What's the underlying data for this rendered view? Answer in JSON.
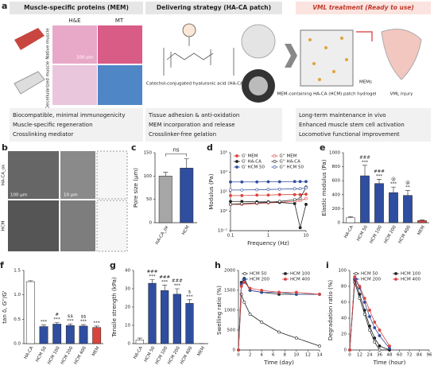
{
  "panel_a": {
    "label": "a",
    "sections": [
      {
        "title": "Muscle-specific proteins (MEM)",
        "bullets": [
          "Biocompatible, minimal immunogenicity",
          "Muscle-specific regeneration",
          "Crosslinking mediator"
        ]
      },
      {
        "title": "Delivering strategy (HA-CA patch)",
        "bullets": [
          "Tissue adhesion & anti-oxidation",
          "MEM incorporation and release",
          "Crosslinker-free gelation"
        ]
      },
      {
        "title": "VML treatment (Ready to use)",
        "bullets": [
          "Long-term maintenance in vivo",
          "Enhanced muscle stem cell activation",
          "Locomotive functional improvement"
        ]
      }
    ],
    "row_labels": [
      "Native muscle",
      "Decellularized muscle"
    ],
    "stain_labels": [
      "H&E",
      "MT"
    ],
    "scale_bar": "100 μm",
    "molecule_label": "Catechol-conjugated hyaluronic acid (HA-CA)",
    "hydrogel_label": "MEM-containing HA-CA (HCM) patch hydrogel",
    "mems_label": "MEMs",
    "injury_label": "VML injury"
  },
  "panel_b": {
    "label": "b",
    "rows": [
      "HA-CA_ox",
      "HCM"
    ],
    "scale_bars": [
      "100 μm",
      "10 μm"
    ]
  },
  "chart_data": [
    {
      "type": "bar",
      "label": "c",
      "ylabel": "Pore size (μm)",
      "categories": [
        "HA-CA_ox",
        "HCM"
      ],
      "values": [
        100,
        117
      ],
      "errors": [
        8,
        20
      ],
      "colors": [
        "#a6a6a6",
        "#2f4ea0"
      ],
      "ylim": [
        0,
        150
      ],
      "yticks": [
        0,
        50,
        100,
        150
      ],
      "annotation": "ns"
    },
    {
      "type": "line",
      "label": "d",
      "xlabel": "Frequency (Hz)",
      "ylabel": "Modulus (Pa)",
      "log_x": true,
      "log_y": true,
      "x": [
        0.1,
        0.2,
        0.5,
        1,
        2,
        5,
        7,
        10
      ],
      "xlim": [
        0.1,
        10
      ],
      "xticks": [
        0.1,
        1,
        10
      ],
      "ylim": [
        0.01,
        1000000
      ],
      "yticks": [
        {
          "value": 0.01,
          "label": "10⁻²"
        },
        {
          "value": 1,
          "label": "10⁰"
        },
        {
          "value": 100,
          "label": "10²"
        },
        {
          "value": 10000,
          "label": "10⁴"
        },
        {
          "value": 1000000,
          "label": "10⁶"
        }
      ],
      "legend_columns": 2,
      "series": [
        {
          "name": "G' MEM",
          "color": "#d9453d",
          "marker": "filled",
          "values": [
            40,
            40,
            45,
            45,
            50,
            50,
            50,
            55
          ]
        },
        {
          "name": "G'' MEM",
          "color": "#d9453d",
          "marker": "open",
          "values": [
            5,
            5,
            6,
            7,
            8,
            10,
            12,
            20
          ]
        },
        {
          "name": "G' HA-CA",
          "color": "#222222",
          "marker": "filled",
          "values": [
            10,
            10,
            9,
            9,
            8,
            6,
            0.02,
            5
          ]
        },
        {
          "name": "G'' HA-CA",
          "color": "#222222",
          "marker": "open",
          "values": [
            5,
            6,
            7,
            8,
            10,
            15,
            20,
            300
          ]
        },
        {
          "name": "G' HCM 50",
          "color": "#2f4ea0",
          "marker": "filled",
          "values": [
            1000,
            1000,
            1000,
            1050,
            1050,
            1100,
            1100,
            1100
          ]
        },
        {
          "name": "G'' HCM 50",
          "color": "#2f4ea0",
          "marker": "open",
          "values": [
            150,
            150,
            160,
            170,
            180,
            200,
            200,
            250
          ]
        }
      ]
    },
    {
      "type": "bar",
      "label": "e",
      "ylabel": "Elastic modulus (Pa)",
      "categories": [
        "HA-CA",
        "HCM 50",
        "HCM 100",
        "HCM 200",
        "HCM 400",
        "MEM"
      ],
      "values": [
        70,
        670,
        560,
        430,
        390,
        30
      ],
      "errors": [
        15,
        150,
        60,
        80,
        70,
        10
      ],
      "colors": [
        "#ffffff",
        "#2f4ea0",
        "#2f4ea0",
        "#2f4ea0",
        "#2f4ea0",
        "#d9453d"
      ],
      "ylim": [
        0,
        1000
      ],
      "yticks": [
        0,
        200,
        400,
        600,
        800,
        1000
      ],
      "sig": [
        null,
        [
          "###",
          "***"
        ],
        [
          "###",
          "***"
        ],
        [
          "@",
          "***"
        ],
        [
          "@",
          "**"
        ],
        null
      ]
    },
    {
      "type": "bar",
      "label": "f",
      "ylabel": "tan δ, G''/G'",
      "categories": [
        "HA-CA",
        "HCM 50",
        "HCM 100",
        "HCM 200",
        "HCM 400",
        "MEM"
      ],
      "values": [
        1.27,
        0.35,
        0.4,
        0.37,
        0.36,
        0.33
      ],
      "errors": [
        0.02,
        0.03,
        0.03,
        0.03,
        0.03,
        0.03
      ],
      "colors": [
        "#ffffff",
        "#2f4ea0",
        "#2f4ea0",
        "#2f4ea0",
        "#2f4ea0",
        "#d9453d"
      ],
      "ylim": [
        0,
        1.5
      ],
      "yticks": [
        {
          "value": 0,
          "label": "0.0"
        },
        0.5,
        {
          "value": 1,
          "label": "1.0"
        },
        1.5
      ],
      "sig": [
        null,
        [
          "***"
        ],
        [
          "#",
          "***"
        ],
        [
          "$$",
          "***"
        ],
        [
          "$$",
          "***"
        ],
        [
          "***"
        ]
      ]
    },
    {
      "type": "bar",
      "label": "g",
      "ylabel": "Tensile strength (kPa)",
      "categories": [
        "HA-CA",
        "HCM 50",
        "HCM 100",
        "HCM 200",
        "HCM 400",
        "MEM"
      ],
      "values": [
        2,
        33,
        29,
        27,
        22,
        0
      ],
      "errors": [
        1,
        2,
        3,
        3,
        2,
        0
      ],
      "colors": [
        "#ffffff",
        "#2f4ea0",
        "#2f4ea0",
        "#2f4ea0",
        "#2f4ea0",
        "#d9453d"
      ],
      "ylim": [
        0,
        40
      ],
      "yticks": [
        0,
        10,
        20,
        30,
        40
      ],
      "sig": [
        null,
        [
          "###",
          "***"
        ],
        [
          "###",
          "***"
        ],
        [
          "###",
          "***"
        ],
        [
          "$",
          "***"
        ],
        null
      ]
    },
    {
      "type": "line",
      "label": "h",
      "xlabel": "Time (day)",
      "ylabel": "Swelling ratio (%)",
      "x": [
        0,
        0.5,
        1,
        2,
        4,
        7,
        10,
        14
      ],
      "xlim": [
        0,
        14
      ],
      "xticks": [
        0,
        2,
        4,
        6,
        8,
        10,
        12,
        14
      ],
      "ylim": [
        0,
        2000
      ],
      "yticks": [
        0,
        500,
        1000,
        1500,
        2000
      ],
      "legend_columns": 2,
      "series": [
        {
          "name": "HCM 50",
          "color": "#222222",
          "marker": "open",
          "values": [
            0,
            1400,
            1200,
            900,
            700,
            450,
            300,
            100
          ]
        },
        {
          "name": "HCM 100",
          "color": "#222222",
          "marker": "filled",
          "values": [
            0,
            1700,
            1800,
            1500,
            1450,
            1400,
            1400,
            1400
          ]
        },
        {
          "name": "HCM 200",
          "color": "#2f4ea0",
          "marker": "filled",
          "values": [
            0,
            1650,
            1750,
            1500,
            1450,
            1450,
            1400,
            1400
          ]
        },
        {
          "name": "HCM 400",
          "color": "#d9453d",
          "marker": "filled",
          "values": [
            0,
            1600,
            1700,
            1550,
            1500,
            1450,
            1450,
            1400
          ]
        }
      ]
    },
    {
      "type": "line",
      "label": "i",
      "xlabel": "Time (hour)",
      "ylabel": "Degradation ratio (%)",
      "x": [
        0,
        6,
        12,
        18,
        24,
        30,
        36,
        48
      ],
      "xlim": [
        0,
        96
      ],
      "xticks": [
        0,
        12,
        24,
        36,
        48,
        60,
        72,
        84,
        96
      ],
      "ylim": [
        0,
        100
      ],
      "yticks": [
        0,
        20,
        40,
        60,
        80,
        100
      ],
      "legend_columns": 2,
      "series": [
        {
          "name": "HCM 50",
          "color": "#222222",
          "marker": "open",
          "values": [
            0,
            85,
            65,
            45,
            25,
            10,
            0,
            0
          ]
        },
        {
          "name": "HCM 100",
          "color": "#222222",
          "marker": "filled",
          "values": [
            0,
            88,
            70,
            50,
            30,
            15,
            5,
            0
          ]
        },
        {
          "name": "HCM 200",
          "color": "#2f4ea0",
          "marker": "filled",
          "values": [
            0,
            90,
            78,
            60,
            42,
            28,
            18,
            2
          ]
        },
        {
          "name": "HCM 400",
          "color": "#d9453d",
          "marker": "filled",
          "values": [
            0,
            92,
            80,
            65,
            50,
            35,
            25,
            5
          ]
        }
      ]
    }
  ]
}
